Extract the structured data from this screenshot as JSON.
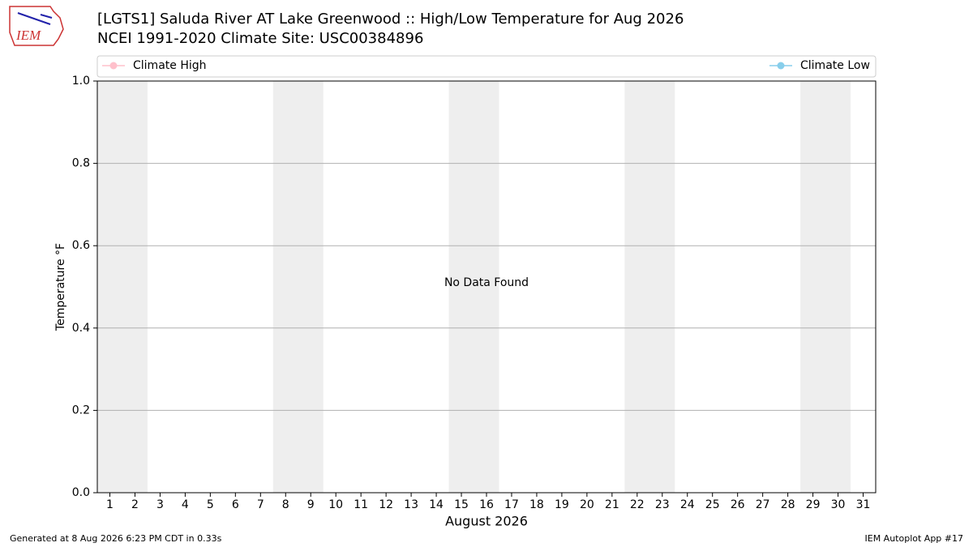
{
  "chart_data": {
    "type": "line",
    "logo": "IEM",
    "title": "[LGTS1] Saluda River  AT Lake Greenwood :: High/Low Temperature for Aug 2026",
    "subtitle": "NCEI 1991-2020 Climate Site: USC00384896",
    "xlabel": "August 2026",
    "ylabel": "Temperature °F",
    "annotation": "No Data Found",
    "footer_left": "Generated at 8 Aug 2026 6:23 PM CDT in 0.33s",
    "footer_right": "IEM Autoplot App #17",
    "x": [
      1,
      2,
      3,
      4,
      5,
      6,
      7,
      8,
      9,
      10,
      11,
      12,
      13,
      14,
      15,
      16,
      17,
      18,
      19,
      20,
      21,
      22,
      23,
      24,
      25,
      26,
      27,
      28,
      29,
      30,
      31
    ],
    "series": [
      {
        "name": "Climate High",
        "color": "#ffc0cb",
        "values": [
          null,
          null,
          null,
          null,
          null,
          null,
          null,
          null,
          null,
          null,
          null,
          null,
          null,
          null,
          null,
          null,
          null,
          null,
          null,
          null,
          null,
          null,
          null,
          null,
          null,
          null,
          null,
          null,
          null,
          null,
          null
        ]
      },
      {
        "name": "Climate Low",
        "color": "#87ceeb",
        "values": [
          null,
          null,
          null,
          null,
          null,
          null,
          null,
          null,
          null,
          null,
          null,
          null,
          null,
          null,
          null,
          null,
          null,
          null,
          null,
          null,
          null,
          null,
          null,
          null,
          null,
          null,
          null,
          null,
          null,
          null,
          null
        ]
      }
    ],
    "shaded_days": [
      [
        1,
        2
      ],
      [
        8,
        9
      ],
      [
        15,
        16
      ],
      [
        22,
        23
      ],
      [
        29,
        30
      ]
    ],
    "xlim": [
      0.5,
      31.5
    ],
    "xticks": [
      1,
      2,
      3,
      4,
      5,
      6,
      7,
      8,
      9,
      10,
      11,
      12,
      13,
      14,
      15,
      16,
      17,
      18,
      19,
      20,
      21,
      22,
      23,
      24,
      25,
      26,
      27,
      28,
      29,
      30,
      31
    ],
    "ylim": [
      0,
      1
    ],
    "yticks": [
      {
        "value": 0,
        "label": "0.0"
      },
      0.2,
      0.4,
      0.6,
      0.8,
      {
        "value": 1,
        "label": "1.0"
      }
    ],
    "grid": true
  }
}
